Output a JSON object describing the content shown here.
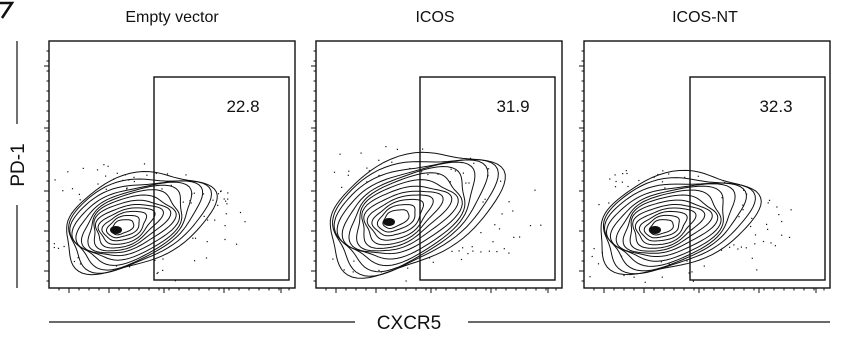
{
  "chart_data": {
    "type": "contour",
    "panels": [
      {
        "title": "Empty vector",
        "gate_value": "22.8"
      },
      {
        "title": "ICOS",
        "gate_value": "31.9"
      },
      {
        "title": "ICOS-NT",
        "gate_value": "32.3"
      }
    ],
    "xlabel": "CXCR5",
    "ylabel": "PD-1",
    "colors": {
      "ink": "#111111",
      "background": "#ffffff"
    }
  }
}
